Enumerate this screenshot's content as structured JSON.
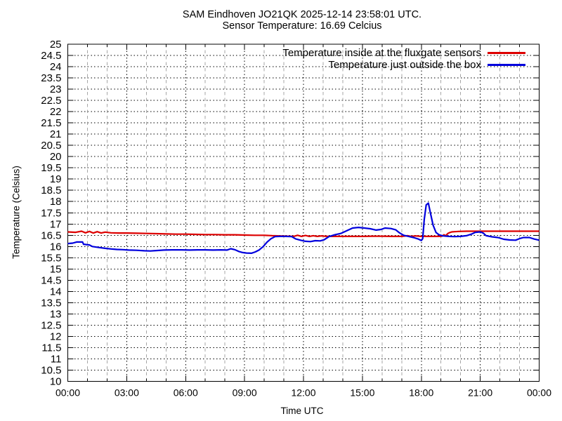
{
  "header": {
    "title": "SAM Eindhoven JO21QK 2025-12-14 23:58:01 UTC.",
    "subtitle": "Sensor Temperature: 16.69 Celcius"
  },
  "chart_data": {
    "type": "line",
    "title": "SAM Eindhoven JO21QK 2025-12-14 23:58:01 UTC.",
    "subtitle": "Sensor Temperature: 16.69 Celcius",
    "xlabel": "Time UTC",
    "ylabel": "Temperature (Celsius)",
    "ylim": [
      10,
      25
    ],
    "xlim_hours": [
      0,
      24
    ],
    "y_tick_step": 0.5,
    "y_tick_labels": [
      "25",
      "24.5",
      "24",
      "23.5",
      "23",
      "22.5",
      "22",
      "21.5",
      "21",
      "20.5",
      "20",
      "19.5",
      "19",
      "18.5",
      "18",
      "17.5",
      "17",
      "16.5",
      "16",
      "15.5",
      "15",
      "14.5",
      "14",
      "13.5",
      "13",
      "12.5",
      "12",
      "11.5",
      "11",
      "10.5",
      "10"
    ],
    "x_ticks": [
      {
        "hour": 0,
        "label": "00:00"
      },
      {
        "hour": 3,
        "label": "03:00"
      },
      {
        "hour": 6,
        "label": "06:00"
      },
      {
        "hour": 9,
        "label": "09:00"
      },
      {
        "hour": 12,
        "label": "12:00"
      },
      {
        "hour": 15,
        "label": "15:00"
      },
      {
        "hour": 18,
        "label": "18:00"
      },
      {
        "hour": 21,
        "label": "21:00"
      },
      {
        "hour": 24,
        "label": "00:00"
      }
    ],
    "grid": {
      "h_line_color": "#000000",
      "h_line_dash": "1.5 3.2",
      "v_major_color": "#000000",
      "v_major_dash": "1.5 3.2",
      "v_minor_color": "#a6a6a6",
      "v_minor_dash": "4.5 4",
      "border_color": "#000000"
    },
    "legend": [
      {
        "label": "Temperature inside at the fluxgate sensors",
        "color": "#dd0000"
      },
      {
        "label": "Temperature just outside the box",
        "color": "#0000dd"
      }
    ],
    "series": [
      {
        "name": "Temperature inside at the fluxgate sensors",
        "color": "#dd0000",
        "points": [
          [
            0,
            16.65
          ],
          [
            0.4,
            16.63
          ],
          [
            0.7,
            16.68
          ],
          [
            0.9,
            16.61
          ],
          [
            1.1,
            16.67
          ],
          [
            1.3,
            16.6
          ],
          [
            1.5,
            16.66
          ],
          [
            1.7,
            16.6
          ],
          [
            1.9,
            16.64
          ],
          [
            2.2,
            16.61
          ],
          [
            2.6,
            16.6
          ],
          [
            3,
            16.6
          ],
          [
            3.5,
            16.59
          ],
          [
            4,
            16.58
          ],
          [
            4.5,
            16.57
          ],
          [
            5,
            16.56
          ],
          [
            5.5,
            16.55
          ],
          [
            6,
            16.55
          ],
          [
            6.5,
            16.54
          ],
          [
            7,
            16.53
          ],
          [
            7.5,
            16.53
          ],
          [
            8,
            16.52
          ],
          [
            8.5,
            16.52
          ],
          [
            9,
            16.51
          ],
          [
            9.5,
            16.5
          ],
          [
            10,
            16.5
          ],
          [
            10.4,
            16.48
          ],
          [
            10.8,
            16.47
          ],
          [
            11.2,
            16.46
          ],
          [
            11.5,
            16.45
          ],
          [
            11.7,
            16.5
          ],
          [
            11.9,
            16.45
          ],
          [
            12.1,
            16.49
          ],
          [
            12.3,
            16.45
          ],
          [
            12.5,
            16.48
          ],
          [
            12.7,
            16.45
          ],
          [
            12.9,
            16.47
          ],
          [
            13.2,
            16.45
          ],
          [
            13.6,
            16.45
          ],
          [
            14,
            16.45
          ],
          [
            14.5,
            16.45
          ],
          [
            15,
            16.45
          ],
          [
            15.5,
            16.46
          ],
          [
            16,
            16.46
          ],
          [
            16.5,
            16.45
          ],
          [
            17,
            16.45
          ],
          [
            17.3,
            16.48
          ],
          [
            17.5,
            16.45
          ],
          [
            17.7,
            16.47
          ],
          [
            18,
            16.45
          ],
          [
            18.4,
            16.45
          ],
          [
            18.8,
            16.45
          ],
          [
            19.05,
            16.46
          ],
          [
            19.15,
            16.52
          ],
          [
            19.25,
            16.48
          ],
          [
            19.35,
            16.58
          ],
          [
            19.45,
            16.62
          ],
          [
            19.55,
            16.65
          ],
          [
            19.7,
            16.66
          ],
          [
            19.9,
            16.67
          ],
          [
            20.3,
            16.68
          ],
          [
            21,
            16.68
          ],
          [
            22,
            16.68
          ],
          [
            23,
            16.68
          ],
          [
            23.5,
            16.68
          ],
          [
            24,
            16.68
          ]
        ]
      },
      {
        "name": "Temperature just outside the box",
        "color": "#0000dd",
        "points": [
          [
            0,
            16.13
          ],
          [
            0.25,
            16.15
          ],
          [
            0.45,
            16.2
          ],
          [
            0.75,
            16.2
          ],
          [
            0.8,
            16.1
          ],
          [
            1.1,
            16.07
          ],
          [
            1.25,
            16.0
          ],
          [
            1.55,
            15.96
          ],
          [
            1.9,
            15.92
          ],
          [
            2.2,
            15.89
          ],
          [
            2.5,
            15.87
          ],
          [
            2.8,
            15.86
          ],
          [
            3.1,
            15.84
          ],
          [
            3.5,
            15.83
          ],
          [
            3.9,
            15.81
          ],
          [
            4.2,
            15.8
          ],
          [
            4.5,
            15.82
          ],
          [
            4.9,
            15.84
          ],
          [
            5.3,
            15.85
          ],
          [
            5.8,
            15.85
          ],
          [
            6.2,
            15.84
          ],
          [
            6.6,
            15.85
          ],
          [
            7,
            15.85
          ],
          [
            7.4,
            15.84
          ],
          [
            7.8,
            15.85
          ],
          [
            8.1,
            15.84
          ],
          [
            8.3,
            15.9
          ],
          [
            8.5,
            15.86
          ],
          [
            8.7,
            15.78
          ],
          [
            8.9,
            15.73
          ],
          [
            9.1,
            15.71
          ],
          [
            9.35,
            15.7
          ],
          [
            9.55,
            15.76
          ],
          [
            9.75,
            15.85
          ],
          [
            9.95,
            16.0
          ],
          [
            10.15,
            16.2
          ],
          [
            10.35,
            16.35
          ],
          [
            10.55,
            16.44
          ],
          [
            10.8,
            16.45
          ],
          [
            11.1,
            16.45
          ],
          [
            11.4,
            16.44
          ],
          [
            11.6,
            16.34
          ],
          [
            11.85,
            16.28
          ],
          [
            12.1,
            16.23
          ],
          [
            12.35,
            16.22
          ],
          [
            12.6,
            16.26
          ],
          [
            12.85,
            16.25
          ],
          [
            13.05,
            16.3
          ],
          [
            13.3,
            16.44
          ],
          [
            13.6,
            16.52
          ],
          [
            13.9,
            16.58
          ],
          [
            14.2,
            16.7
          ],
          [
            14.5,
            16.82
          ],
          [
            14.8,
            16.85
          ],
          [
            15.1,
            16.82
          ],
          [
            15.4,
            16.79
          ],
          [
            15.7,
            16.73
          ],
          [
            15.95,
            16.76
          ],
          [
            16.15,
            16.82
          ],
          [
            16.45,
            16.8
          ],
          [
            16.7,
            16.74
          ],
          [
            16.9,
            16.6
          ],
          [
            17.1,
            16.5
          ],
          [
            17.35,
            16.45
          ],
          [
            17.6,
            16.4
          ],
          [
            17.85,
            16.33
          ],
          [
            18.0,
            16.27
          ],
          [
            18.07,
            16.35
          ],
          [
            18.15,
            17.2
          ],
          [
            18.25,
            17.85
          ],
          [
            18.36,
            17.93
          ],
          [
            18.45,
            17.55
          ],
          [
            18.6,
            16.95
          ],
          [
            18.75,
            16.62
          ],
          [
            18.9,
            16.52
          ],
          [
            19.1,
            16.47
          ],
          [
            19.4,
            16.45
          ],
          [
            19.7,
            16.44
          ],
          [
            20,
            16.45
          ],
          [
            20.3,
            16.48
          ],
          [
            20.55,
            16.55
          ],
          [
            20.75,
            16.63
          ],
          [
            21.0,
            16.65
          ],
          [
            21.15,
            16.6
          ],
          [
            21.3,
            16.48
          ],
          [
            21.6,
            16.43
          ],
          [
            21.9,
            16.4
          ],
          [
            22.2,
            16.32
          ],
          [
            22.5,
            16.29
          ],
          [
            22.8,
            16.28
          ],
          [
            23.0,
            16.35
          ],
          [
            23.2,
            16.4
          ],
          [
            23.5,
            16.4
          ],
          [
            23.75,
            16.33
          ],
          [
            24,
            16.28
          ]
        ]
      }
    ]
  }
}
